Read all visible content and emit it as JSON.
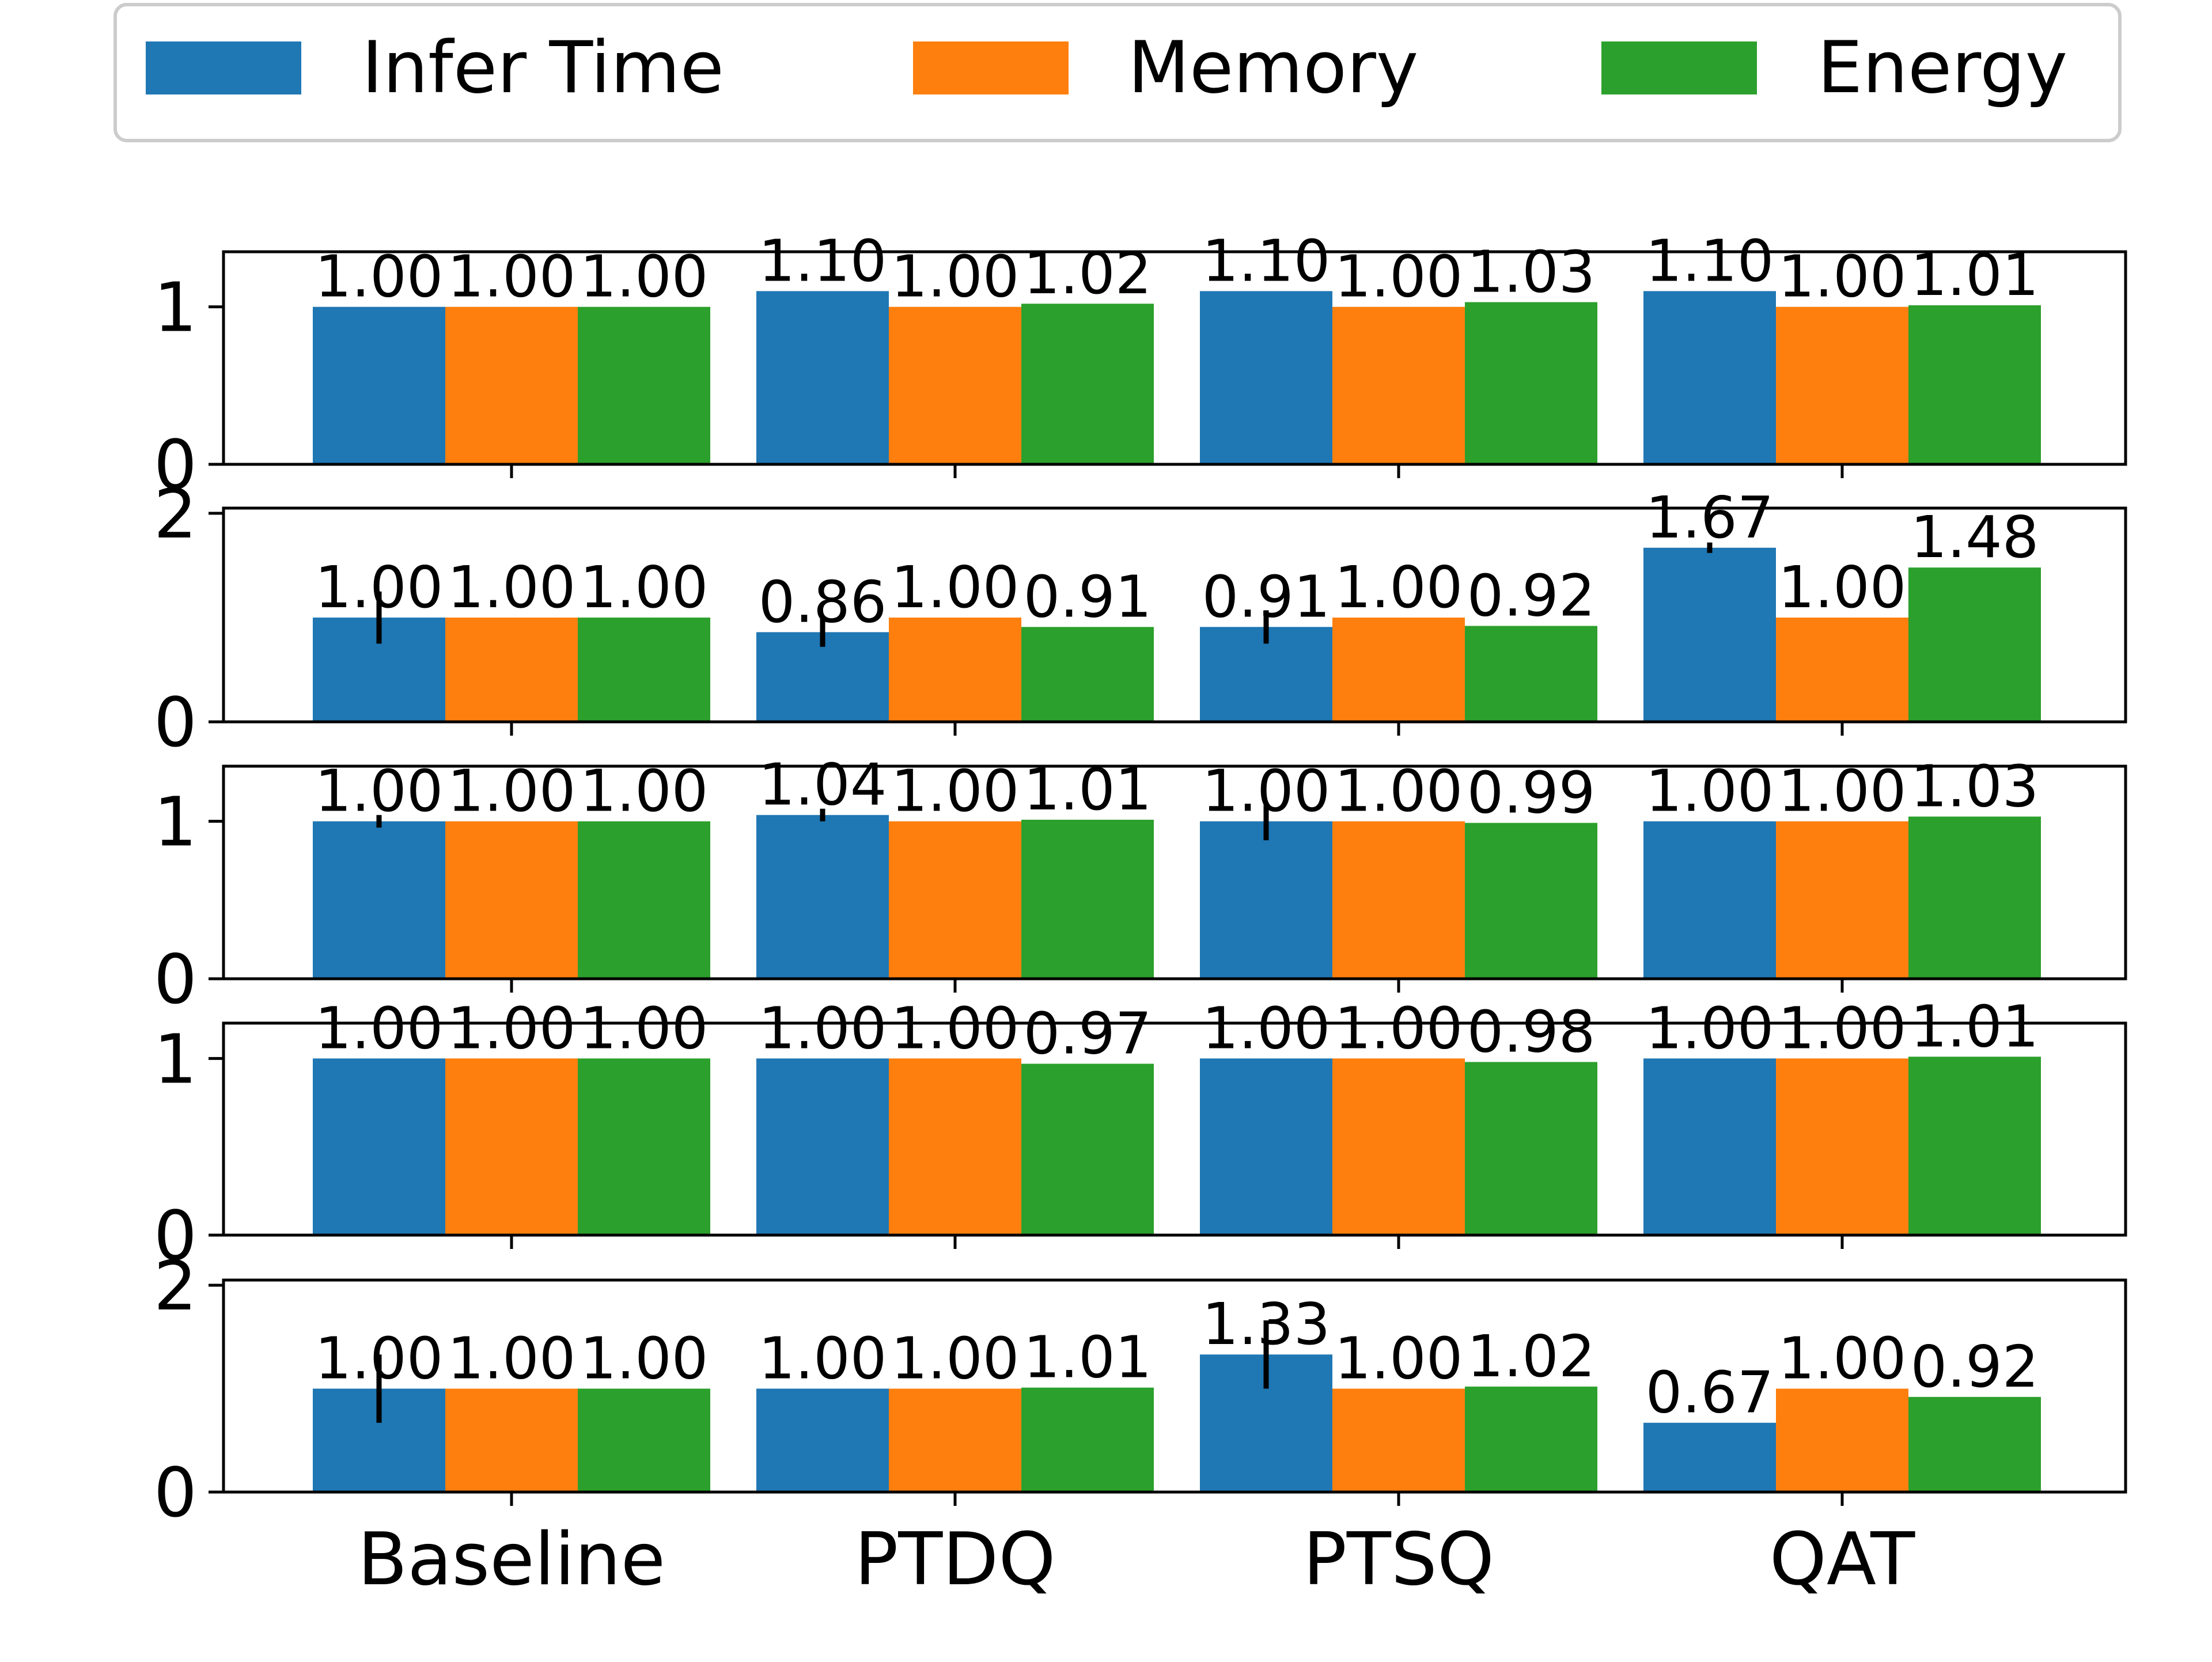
{
  "chart_data": {
    "type": "bar",
    "categories": [
      "Baseline",
      "PTDQ",
      "PTSQ",
      "QAT"
    ],
    "legend": {
      "placement": "top",
      "entries": [
        "Infer Time",
        "Memory",
        "Energy"
      ]
    },
    "series_colors": [
      "#1f77b4",
      "#ff7f0e",
      "#2ca02c"
    ],
    "panels": [
      {
        "ylim": [
          0,
          1.35
        ],
        "yticks": [
          "0",
          "1"
        ],
        "series": [
          {
            "name": "Infer Time",
            "values": [
              1.0,
              1.1,
              1.1,
              1.1
            ],
            "labels": [
              "1.00",
              "1.10",
              "1.10",
              "1.10"
            ],
            "errors": [
              0,
              0,
              0,
              0
            ]
          },
          {
            "name": "Memory",
            "values": [
              1.0,
              1.0,
              1.0,
              1.0
            ],
            "labels": [
              "1.00",
              "1.00",
              "1.00",
              "1.00"
            ]
          },
          {
            "name": "Energy",
            "values": [
              1.0,
              1.02,
              1.03,
              1.01
            ],
            "labels": [
              "1.00",
              "1.02",
              "1.03",
              "1.01"
            ]
          }
        ]
      },
      {
        "ylim": [
          0,
          2.05
        ],
        "yticks": [
          "0",
          "2"
        ],
        "series": [
          {
            "name": "Infer Time",
            "values": [
              1.0,
              0.86,
              0.91,
              1.67
            ],
            "labels": [
              "1.00",
              "0.86",
              "0.91",
              "1.67"
            ],
            "errors": [
              0.25,
              0.14,
              0.16,
              0.05
            ]
          },
          {
            "name": "Memory",
            "values": [
              1.0,
              1.0,
              1.0,
              1.0
            ],
            "labels": [
              "1.00",
              "1.00",
              "1.00",
              "1.00"
            ]
          },
          {
            "name": "Energy",
            "values": [
              1.0,
              0.91,
              0.92,
              1.48
            ],
            "labels": [
              "1.00",
              "0.91",
              "0.92",
              "1.48"
            ]
          }
        ]
      },
      {
        "ylim": [
          0,
          1.35
        ],
        "yticks": [
          "0",
          "1"
        ],
        "series": [
          {
            "name": "Infer Time",
            "values": [
              1.0,
              1.04,
              1.0,
              1.0
            ],
            "labels": [
              "1.00",
              "1.04",
              "1.00",
              "1.00"
            ],
            "errors": [
              0.04,
              0.04,
              0.12,
              0
            ]
          },
          {
            "name": "Memory",
            "values": [
              1.0,
              1.0,
              1.0,
              1.0
            ],
            "labels": [
              "1.00",
              "1.00",
              "1.00",
              "1.00"
            ]
          },
          {
            "name": "Energy",
            "values": [
              1.0,
              1.01,
              0.99,
              1.03
            ],
            "labels": [
              "1.00",
              "1.01",
              "0.99",
              "1.03"
            ]
          }
        ]
      },
      {
        "ylim": [
          0,
          1.2
        ],
        "yticks": [
          "0",
          "1"
        ],
        "series": [
          {
            "name": "Infer Time",
            "values": [
              1.0,
              1.0,
              1.0,
              1.0
            ],
            "labels": [
              "1.00",
              "1.00",
              "1.00",
              "1.00"
            ],
            "errors": [
              0,
              0,
              0,
              0
            ]
          },
          {
            "name": "Memory",
            "values": [
              1.0,
              1.0,
              1.0,
              1.0
            ],
            "labels": [
              "1.00",
              "1.00",
              "1.00",
              "1.00"
            ]
          },
          {
            "name": "Energy",
            "values": [
              1.0,
              0.97,
              0.98,
              1.01
            ],
            "labels": [
              "1.00",
              "0.97",
              "0.98",
              "1.01"
            ]
          }
        ]
      },
      {
        "ylim": [
          0,
          2.05
        ],
        "yticks": [
          "0",
          "2"
        ],
        "series": [
          {
            "name": "Infer Time",
            "values": [
              1.0,
              1.0,
              1.33,
              0.67
            ],
            "labels": [
              "1.00",
              "1.00",
              "1.33",
              "0.67"
            ],
            "errors": [
              0.33,
              0,
              0.33,
              0
            ]
          },
          {
            "name": "Memory",
            "values": [
              1.0,
              1.0,
              1.0,
              1.0
            ],
            "labels": [
              "1.00",
              "1.00",
              "1.00",
              "1.00"
            ]
          },
          {
            "name": "Energy",
            "values": [
              1.0,
              1.01,
              1.02,
              0.92
            ],
            "labels": [
              "1.00",
              "1.01",
              "1.02",
              "0.92"
            ]
          }
        ]
      }
    ]
  }
}
